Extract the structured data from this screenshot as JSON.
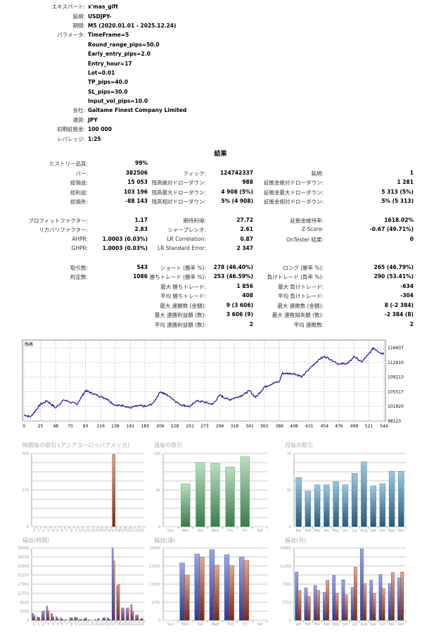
{
  "info": [
    {
      "label": "エキスパート:",
      "value": "x'mas_gift"
    },
    {
      "label": "銘柄:",
      "value": "USDJPY-"
    },
    {
      "label": "期間:",
      "value": "M5 (2020.01.01 - 2025.12.24)"
    },
    {
      "label": "パラメータ:",
      "value": "TimeFrame=5"
    },
    {
      "label": "",
      "value": "Round_range_pips=50.0"
    },
    {
      "label": "",
      "value": "Early_entry_pips=2.0"
    },
    {
      "label": "",
      "value": "Entry_hour=17"
    },
    {
      "label": "",
      "value": "Lot=0.01"
    },
    {
      "label": "",
      "value": "TP_pips=40.0"
    },
    {
      "label": "",
      "value": "SL_pips=30.0"
    },
    {
      "label": "",
      "value": "Input_vol_pips=10.0"
    },
    {
      "label": "会社:",
      "value": "Gaitame Finest Company Limited"
    },
    {
      "label": "通貨:",
      "value": "JPY"
    },
    {
      "label": "初期証拠金:",
      "value": "100 000"
    },
    {
      "label": "レバレッジ:",
      "value": "1:25"
    }
  ],
  "results_title": "結果",
  "results": [
    [
      [
        "ヒストリー品質:",
        "99%"
      ],
      null,
      null
    ],
    [
      [
        "バー:",
        "382506"
      ],
      [
        "ティック:",
        "124742337"
      ],
      [
        "銘柄:",
        "1"
      ]
    ],
    [
      [
        "総損益:",
        "15 053"
      ],
      [
        "残高絶対ドローダウン:",
        "988"
      ],
      [
        "証拠金絶対ドローダウン:",
        "1 281"
      ]
    ],
    [
      [
        "総利益:",
        "103 196"
      ],
      [
        "残高最大ドローダウン:",
        "4 908 (5%)"
      ],
      [
        "証拠金最大ドローダウン:",
        "5 313 (5%)"
      ]
    ],
    [
      [
        "総損失:",
        "-88 143"
      ],
      [
        "残高相対ドローダウン:",
        "5% (4 908)"
      ],
      [
        "証拠金相対ドローダウン:",
        "5% (5 313)"
      ]
    ],
    "gap",
    [
      [
        "プロフィットファクター:",
        "1.17"
      ],
      [
        "期待利得:",
        "27.72"
      ],
      [
        "証拠金維持率:",
        "1618.02%"
      ]
    ],
    [
      [
        "リカバリファクター:",
        "2.83"
      ],
      [
        "シャープレシオ:",
        "2.61"
      ],
      [
        "Z-Score:",
        "-0.67 (49.71%)"
      ]
    ],
    [
      [
        "AHPR:",
        "1.0003 (0.03%)"
      ],
      [
        "LR Correlation:",
        "0.87"
      ],
      [
        "OnTester 結果:",
        "0"
      ]
    ],
    [
      [
        "GHPR:",
        "1.0003 (0.03%)"
      ],
      [
        "LR Standard Error:",
        "2 347"
      ],
      null
    ],
    "gap",
    [
      [
        "取引数:",
        "543"
      ],
      [
        "ショート (勝率 %):",
        "278 (46.40%)"
      ],
      [
        "ロング (勝率 %):",
        "265 (46.79%)"
      ]
    ],
    [
      [
        "約定数:",
        "1086"
      ],
      [
        "勝ちトレード (勝率 %):",
        "253 (46.59%)"
      ],
      [
        "負けトレード (負率 %):",
        "290 (53.41%)"
      ]
    ],
    [
      null,
      [
        "最大 勝ちトレード:",
        "1 856"
      ],
      [
        "最大 負けトレード:",
        "-634"
      ]
    ],
    [
      null,
      [
        "平均 勝ちトレード:",
        "408"
      ],
      [
        "平均 負けトレード:",
        "-304"
      ]
    ],
    [
      null,
      [
        "最大 連勝数 (金額):",
        "9 (3 606)"
      ],
      [
        "最大 連敗数 (金額):",
        "8 (-2 384)"
      ]
    ],
    [
      null,
      [
        "最大 連勝利益額 (数):",
        "3 606 (9)"
      ],
      [
        "最大 連敗損失額 (数):",
        "-2 384 (8)"
      ]
    ],
    [
      null,
      [
        "平均 連勝利益額 (数):",
        "2"
      ],
      [
        "平均 連敗数:",
        "2"
      ]
    ]
  ],
  "colors": {
    "balance": "#1a10b0",
    "blue": "#4a5ab0",
    "red": "#a84a30",
    "green": "#5a9a6a",
    "teal": "#4a84a8",
    "grid": "#c8c8c8"
  },
  "chart_data": [
    {
      "type": "line",
      "title": "残高",
      "x_ticks": [
        "0",
        "25",
        "48",
        "70",
        "93",
        "116",
        "138",
        "161",
        "183",
        "206",
        "228",
        "251",
        "273",
        "296",
        "318",
        "341",
        "363",
        "386",
        "408",
        "431",
        "454",
        "476",
        "499",
        "521",
        "544"
      ],
      "y_ticks": [
        "98123",
        "101820",
        "105517",
        "109213",
        "112910",
        "116607"
      ],
      "xlim": [
        0,
        548
      ],
      "ylim": [
        98123,
        118000
      ],
      "points": [
        [
          0,
          99740
        ],
        [
          10,
          99160
        ],
        [
          25,
          102340
        ],
        [
          35,
          103200
        ],
        [
          48,
          101470
        ],
        [
          60,
          103490
        ],
        [
          70,
          102920
        ],
        [
          80,
          102340
        ],
        [
          93,
          105800
        ],
        [
          110,
          104650
        ],
        [
          125,
          103780
        ],
        [
          138,
          102050
        ],
        [
          150,
          102050
        ],
        [
          160,
          101470
        ],
        [
          175,
          102050
        ],
        [
          185,
          101760
        ],
        [
          195,
          102630
        ],
        [
          206,
          105520
        ],
        [
          220,
          104360
        ],
        [
          235,
          102340
        ],
        [
          251,
          101760
        ],
        [
          260,
          103200
        ],
        [
          273,
          102920
        ],
        [
          285,
          102340
        ],
        [
          296,
          104650
        ],
        [
          310,
          103490
        ],
        [
          330,
          104650
        ],
        [
          341,
          105800
        ],
        [
          350,
          104070
        ],
        [
          363,
          106670
        ],
        [
          375,
          107540
        ],
        [
          386,
          108120
        ],
        [
          390,
          110140
        ],
        [
          408,
          110140
        ],
        [
          420,
          109270
        ],
        [
          431,
          111290
        ],
        [
          445,
          113600
        ],
        [
          454,
          114470
        ],
        [
          465,
          113600
        ],
        [
          476,
          112450
        ],
        [
          490,
          112740
        ],
        [
          499,
          114470
        ],
        [
          510,
          113020
        ],
        [
          521,
          115050
        ],
        [
          528,
          116600
        ],
        [
          540,
          115220
        ],
        [
          544,
          115220
        ]
      ]
    },
    {
      "type": "bar",
      "title": "時間毎の取引 (アジアヨーロッパアメリカ)",
      "y_ticks": [
        "0",
        "275",
        "550"
      ],
      "ylim": [
        0,
        550
      ],
      "categories": [
        "0",
        "1",
        "2",
        "3",
        "4",
        "5",
        "6",
        "7",
        "8",
        "9",
        "10",
        "11",
        "12",
        "13",
        "14",
        "15",
        "16",
        "17",
        "18",
        "19",
        "20",
        "21",
        "22",
        "23"
      ],
      "series": [
        {
          "name": "trades",
          "color": "red",
          "values": [
            0,
            0,
            0,
            0,
            0,
            0,
            0,
            0,
            0,
            0,
            0,
            0,
            0,
            0,
            0,
            0,
            0,
            543,
            0,
            0,
            0,
            0,
            0,
            0
          ]
        }
      ]
    },
    {
      "type": "bar",
      "title": "週毎の取引",
      "y_ticks": [
        "0",
        "65",
        "130"
      ],
      "ylim": [
        0,
        130
      ],
      "categories": [
        "Sun",
        "Mon",
        "Tue",
        "Wed",
        "Thu",
        "Fri",
        "Sat"
      ],
      "series": [
        {
          "name": "trades",
          "color": "green",
          "values": [
            0,
            76,
            114,
            112,
            106,
            124,
            0
          ]
        }
      ]
    },
    {
      "type": "bar",
      "title": "月毎の取引",
      "y_ticks": [
        "0",
        "35",
        "70"
      ],
      "ylim": [
        0,
        70
      ],
      "categories": [
        "Jan",
        "Feb",
        "Mar",
        "Apr",
        "May",
        "Jun",
        "Jul",
        "Aug",
        "Sep",
        "Oct",
        "Nov",
        "Dec"
      ],
      "series": [
        {
          "name": "trades",
          "color": "teal",
          "values": [
            47,
            34,
            40,
            40,
            43,
            40,
            51,
            62,
            39,
            41,
            53,
            53
          ]
        }
      ]
    },
    {
      "type": "bar",
      "title": "損益(時間)",
      "y_ticks": [
        "0",
        "4250",
        "8500",
        "12750",
        "17000",
        "21250",
        "25500",
        "29750",
        "34000"
      ],
      "ylim": [
        0,
        34000
      ],
      "categories": [
        "0",
        "1",
        "2",
        "3",
        "4",
        "5",
        "6",
        "7",
        "8",
        "9",
        "10",
        "11",
        "12",
        "13",
        "14",
        "15",
        "16",
        "17",
        "18",
        "19",
        "20",
        "21",
        "22",
        "23"
      ],
      "series": [
        {
          "name": "profit",
          "color": "blue",
          "values": [
            3200,
            1600,
            4000,
            6700,
            3300,
            1700,
            1200,
            400,
            1200,
            1600,
            400,
            900,
            300,
            0,
            900,
            1200,
            1200,
            33700,
            16300,
            5900,
            5500,
            7400,
            2300,
            800
          ]
        },
        {
          "name": "loss",
          "color": "red",
          "values": [
            2200,
            1400,
            4500,
            4500,
            1700,
            800,
            500,
            0,
            1100,
            1300,
            500,
            1100,
            0,
            400,
            0,
            1200,
            500,
            27800,
            16800,
            5500,
            5900,
            4300,
            2600,
            900
          ]
        }
      ]
    },
    {
      "type": "bar",
      "title": "損益(週)",
      "y_ticks": [
        "0",
        "5750",
        "11500",
        "17250",
        "23000"
      ],
      "ylim": [
        0,
        23000
      ],
      "categories": [
        "Sun",
        "Mon",
        "Tue",
        "Wed",
        "Thu",
        "Fri",
        "Sat"
      ],
      "series": [
        {
          "name": "profit",
          "color": "blue",
          "values": [
            0,
            18200,
            21000,
            22400,
            20800,
            20100,
            0
          ]
        },
        {
          "name": "loss",
          "color": "red",
          "values": [
            0,
            14300,
            20000,
            17500,
            17400,
            19000,
            0
          ]
        }
      ]
    },
    {
      "type": "bar",
      "title": "損益(月)",
      "y_ticks": [
        "0",
        "3750",
        "7500",
        "11250",
        "15000"
      ],
      "ylim": [
        0,
        15000
      ],
      "categories": [
        "Jan",
        "Feb",
        "Mar",
        "Apr",
        "May",
        "Jun",
        "Jul",
        "Aug",
        "Sep",
        "Oct",
        "Nov",
        "Dec"
      ],
      "series": [
        {
          "name": "profit",
          "color": "blue",
          "values": [
            10000,
            6700,
            7200,
            5800,
            9300,
            8400,
            6800,
            14800,
            8300,
            9500,
            7600,
            8800
          ]
        },
        {
          "name": "loss",
          "color": "red",
          "values": [
            6200,
            5000,
            6200,
            8300,
            5600,
            5300,
            11000,
            7600,
            5600,
            6600,
            9900,
            10000
          ]
        }
      ]
    }
  ]
}
